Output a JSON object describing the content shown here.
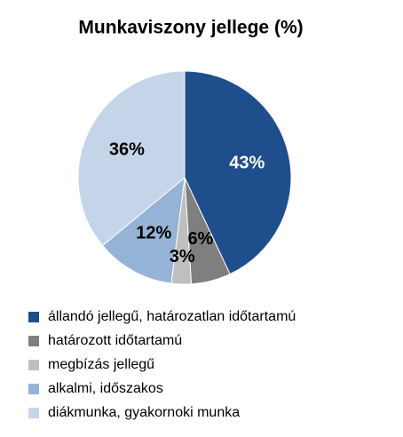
{
  "chart_data": {
    "type": "pie",
    "title": "Munkaviszony jellege (%)",
    "categories": [
      "állandó jellegű, határozatlan időtartamú",
      "határozott időtartamú",
      "megbízás jellegű",
      "alkalmi, időszakos",
      "diákmunka, gyakornoki munka"
    ],
    "values": [
      43,
      6,
      3,
      12,
      36
    ],
    "value_labels": [
      "43%",
      "6%",
      "3%",
      "12%",
      "36%"
    ],
    "colors": [
      "#1f4e8c",
      "#7f7f7f",
      "#bfbfbf",
      "#95b3d7",
      "#c6d4ea"
    ],
    "legend": "bottom"
  }
}
